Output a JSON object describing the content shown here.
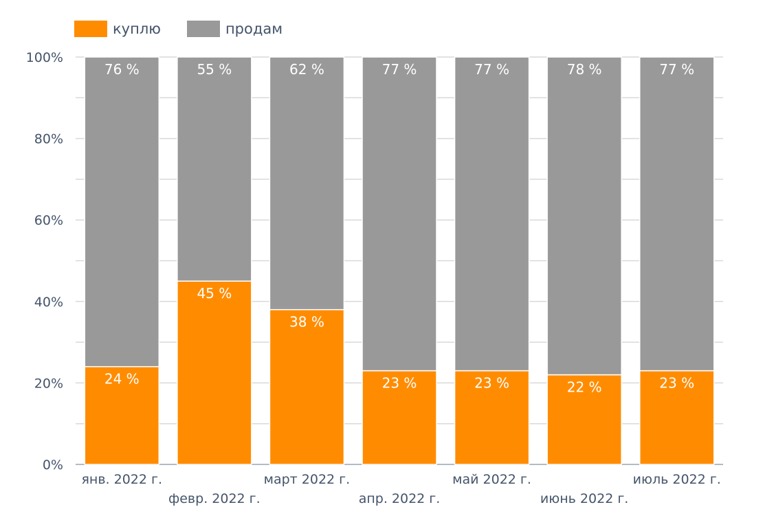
{
  "chart_data": {
    "type": "bar",
    "stacked": true,
    "categories": [
      "янв. 2022 г.",
      "февр. 2022 г.",
      "март 2022 г.",
      "апр. 2022 г.",
      "май 2022 г.",
      "июнь 2022 г.",
      "июль 2022 г."
    ],
    "series": [
      {
        "name": "куплю",
        "color": "#ff8c00",
        "values": [
          24,
          45,
          38,
          23,
          23,
          22,
          23
        ],
        "labels": [
          "24 %",
          "45 %",
          "38 %",
          "23 %",
          "23 %",
          "22 %",
          "23 %"
        ]
      },
      {
        "name": "продам",
        "color": "#999999",
        "values": [
          76,
          55,
          62,
          77,
          77,
          78,
          77
        ],
        "labels": [
          "76 %",
          "55 %",
          "62 %",
          "77 %",
          "77 %",
          "78 %",
          "77 %"
        ]
      }
    ],
    "ylim": [
      0,
      100
    ],
    "yticks": [
      "0%",
      "20%",
      "40%",
      "60%",
      "80%",
      "100%"
    ],
    "grid": true,
    "legend": "top-left",
    "xlabel": "",
    "ylabel": ""
  }
}
